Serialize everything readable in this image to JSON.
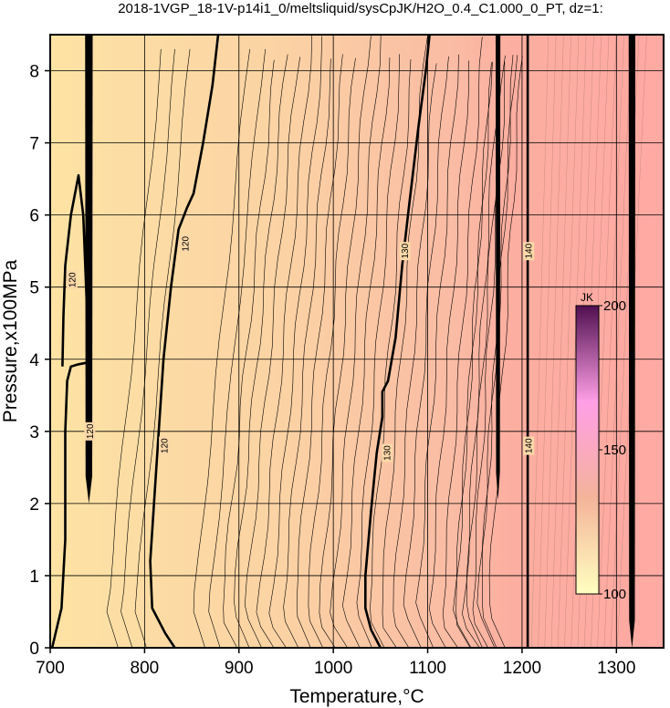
{
  "chart_data": {
    "type": "heatmap",
    "title": "2018-1VGP_18-1V-p14i1_0/meltsliquid/sysCpJK/H2O_0.4_C1.000_0_PT, dz=1:",
    "xlabel": "Temperature,°C",
    "ylabel": "Pressure,x100MPa",
    "xlim": [
      700,
      1350
    ],
    "ylim": [
      0,
      8.5
    ],
    "x_ticks": [
      700,
      800,
      900,
      1000,
      1100,
      1200,
      1300
    ],
    "y_ticks": [
      0,
      1,
      2,
      3,
      4,
      5,
      6,
      7,
      8
    ],
    "grid": true,
    "colorbar": {
      "unit": "JK",
      "range": [
        100,
        200
      ],
      "ticks": [
        100,
        150,
        200
      ],
      "colors": [
        "#ffffc0",
        "#f4b49a",
        "#ff9fe6",
        "#501050"
      ]
    },
    "background_gradient": [
      {
        "x": 700,
        "color": "#fde3a4"
      },
      {
        "x": 950,
        "color": "#fbd2a4"
      },
      {
        "x": 1130,
        "color": "#fabba4"
      },
      {
        "x": 1190,
        "color": "#fcaea0"
      },
      {
        "x": 1350,
        "color": "#ffa9a3"
      }
    ],
    "contours": [
      {
        "level": 120,
        "major": true,
        "points": [
          [
            702,
            0
          ],
          [
            712,
            0.55
          ],
          [
            716,
            1.5
          ],
          [
            716,
            3.0
          ],
          [
            718,
            3.7
          ],
          [
            722,
            3.9
          ],
          [
            730,
            3.93
          ],
          [
            738,
            3.95
          ]
        ]
      },
      {
        "level": 120,
        "major": true,
        "points": [
          [
            713,
            3.9
          ],
          [
            714,
            4.6
          ],
          [
            716,
            5.3
          ],
          [
            722,
            6.0
          ],
          [
            730,
            6.55
          ],
          [
            735,
            6.0
          ],
          [
            738,
            5.0
          ],
          [
            740,
            4.3
          ]
        ]
      },
      {
        "level": 120,
        "major": true,
        "points": [
          [
            832,
            0
          ],
          [
            822,
            0.2
          ],
          [
            808,
            0.55
          ],
          [
            806,
            1.2
          ],
          [
            810,
            2.0
          ],
          [
            815,
            3.0
          ],
          [
            820,
            4.0
          ],
          [
            828,
            5.0
          ],
          [
            836,
            5.8
          ],
          [
            845,
            6.1
          ],
          [
            852,
            6.3
          ],
          [
            862,
            7.0
          ],
          [
            872,
            7.8
          ],
          [
            878,
            8.5
          ]
        ]
      },
      {
        "level": 130,
        "major": true,
        "points": [
          [
            1050,
            0
          ],
          [
            1040,
            0.25
          ],
          [
            1034,
            0.55
          ],
          [
            1034,
            1.0
          ],
          [
            1040,
            1.9
          ],
          [
            1046,
            2.7
          ],
          [
            1052,
            3.2
          ],
          [
            1052,
            3.55
          ],
          [
            1058,
            3.7
          ],
          [
            1066,
            4.3
          ],
          [
            1073,
            5.3
          ],
          [
            1080,
            6.1
          ],
          [
            1090,
            7.2
          ],
          [
            1098,
            8.0
          ],
          [
            1102,
            8.5
          ]
        ]
      },
      {
        "level": 140,
        "major": true,
        "points": [
          [
            1206,
            0
          ],
          [
            1206,
            8.5
          ]
        ]
      }
    ],
    "contour_labels": [
      {
        "text": "120",
        "x": 723,
        "y": 5.1
      },
      {
        "text": "120",
        "x": 742,
        "y": 3.0
      },
      {
        "text": "120",
        "x": 821,
        "y": 2.8
      },
      {
        "text": "120",
        "x": 843,
        "y": 5.6
      },
      {
        "text": "130",
        "x": 1057,
        "y": 2.7
      },
      {
        "text": "130",
        "x": 1076,
        "y": 5.5
      },
      {
        "text": "140",
        "x": 1207,
        "y": 2.8
      },
      {
        "text": "140",
        "x": 1207,
        "y": 5.5
      }
    ],
    "vertical_bands": [
      {
        "x_min": 737,
        "x_max": 745,
        "y_min": 2.0,
        "y_max": 8.5
      },
      {
        "x_min": 1172,
        "x_max": 1177,
        "y_min": 2.05,
        "y_max": 8.5
      },
      {
        "x_min": 1313,
        "x_max": 1320,
        "y_min": 0,
        "y_max": 8.5
      }
    ]
  }
}
